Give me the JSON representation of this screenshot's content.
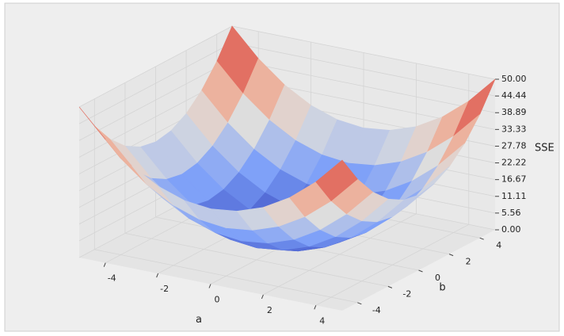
{
  "chart_data": {
    "type": "surface",
    "x_label": "a",
    "y_label": "b",
    "z_label": "SSE",
    "x": [
      -5,
      -4,
      -3,
      -2,
      -1,
      0,
      1,
      2,
      3,
      4,
      5
    ],
    "y": [
      -5,
      -4,
      -3,
      -2,
      -1,
      0,
      1,
      2,
      3,
      4,
      5
    ],
    "z": [
      [
        50,
        41,
        34,
        29,
        26,
        25,
        26,
        29,
        34,
        41,
        50
      ],
      [
        41,
        32,
        25,
        20,
        17,
        16,
        17,
        20,
        25,
        32,
        41
      ],
      [
        34,
        25,
        18,
        13,
        10,
        9,
        10,
        13,
        18,
        25,
        34
      ],
      [
        29,
        20,
        13,
        8,
        5,
        4,
        5,
        8,
        13,
        20,
        29
      ],
      [
        26,
        17,
        10,
        5,
        2,
        1,
        2,
        5,
        10,
        17,
        26
      ],
      [
        25,
        16,
        9,
        4,
        1,
        0,
        1,
        4,
        9,
        16,
        25
      ],
      [
        26,
        17,
        10,
        5,
        2,
        1,
        2,
        5,
        10,
        17,
        26
      ],
      [
        29,
        20,
        13,
        8,
        5,
        4,
        5,
        8,
        13,
        20,
        29
      ],
      [
        34,
        25,
        18,
        13,
        10,
        9,
        10,
        13,
        18,
        25,
        34
      ],
      [
        41,
        32,
        25,
        20,
        17,
        16,
        17,
        20,
        25,
        32,
        41
      ],
      [
        50,
        41,
        34,
        29,
        26,
        25,
        26,
        29,
        34,
        41,
        50
      ]
    ],
    "xlim": [
      -5,
      5
    ],
    "ylim": [
      -5,
      5
    ],
    "zlim": [
      0,
      50
    ],
    "xticks": [
      -4,
      -2,
      0,
      2,
      4
    ],
    "yticks": [
      -4,
      -2,
      0,
      2,
      4
    ],
    "zticks": [
      {
        "value": 0,
        "label": "0.00"
      },
      {
        "value": 5.56,
        "label": "5.56"
      },
      {
        "value": 11.11,
        "label": "11.11"
      },
      {
        "value": 16.67,
        "label": "16.67"
      },
      {
        "value": 22.22,
        "label": "22.22"
      },
      {
        "value": 27.78,
        "label": "27.78"
      },
      {
        "value": 33.33,
        "label": "33.33"
      },
      {
        "value": 38.89,
        "label": "38.89"
      },
      {
        "value": 44.44,
        "label": "44.44"
      },
      {
        "value": 50,
        "label": "50.00"
      }
    ],
    "colormap": [
      "#3b4cc0",
      "#7b9ff9",
      "#dddddd",
      "#f49a7b",
      "#b40426"
    ],
    "grid": true
  }
}
